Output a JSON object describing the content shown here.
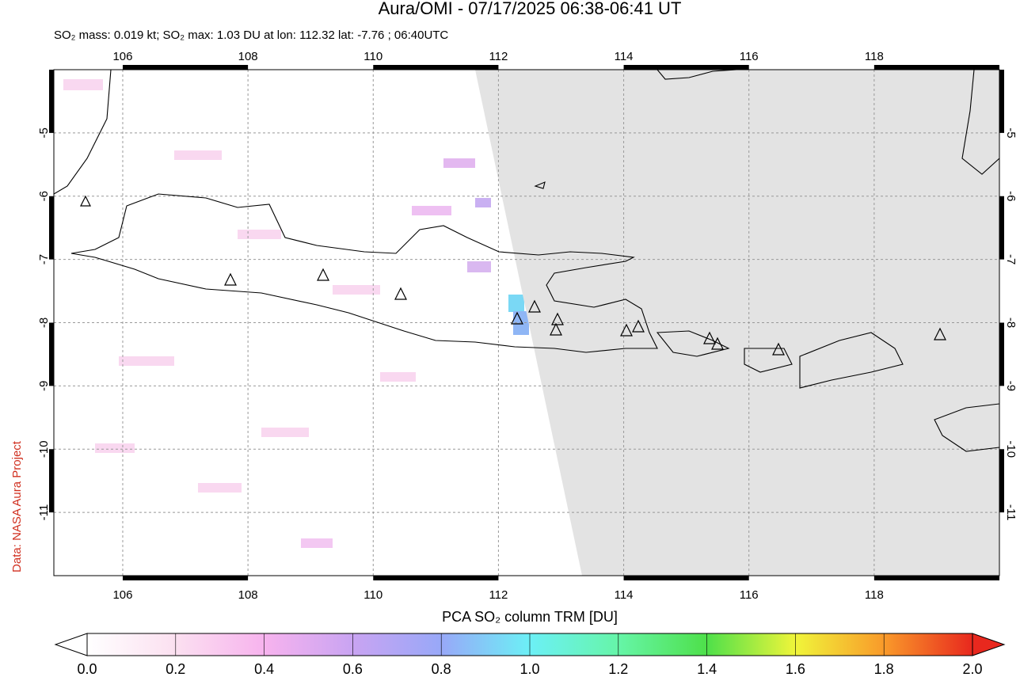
{
  "title": "Aura/OMI - 07/17/2025 06:38-06:41 UT",
  "subtitle": "SO₂ mass: 0.019 kt; SO₂ max: 1.03 DU at lon: 112.32 lat: -7.76 ; 06:40UTC",
  "credit": "Data: NASA Aura Project",
  "map": {
    "lonlim": [
      104.9,
      120
    ],
    "latlim": [
      -12,
      -4
    ],
    "lon_ticks": [
      106,
      108,
      110,
      112,
      114,
      116,
      118
    ],
    "lat_ticks": [
      -5,
      -6,
      -7,
      -8,
      -9,
      -10,
      -11
    ]
  },
  "colorbar": {
    "label": "PCA SO₂ column TRM [DU]",
    "lim": [
      0,
      2
    ],
    "ticks": [
      {
        "value": 0,
        "label": "0.0"
      },
      {
        "value": 0.2,
        "label": "0.2"
      },
      {
        "value": 0.4,
        "label": "0.4"
      },
      {
        "value": 0.6,
        "label": "0.6"
      },
      {
        "value": 0.8,
        "label": "0.8"
      },
      {
        "value": 1,
        "label": "1.0"
      },
      {
        "value": 1.2,
        "label": "1.2"
      },
      {
        "value": 1.4,
        "label": "1.4"
      },
      {
        "value": 1.6,
        "label": "1.6"
      },
      {
        "value": 1.8,
        "label": "1.8"
      },
      {
        "value": 2,
        "label": "2.0"
      }
    ]
  }
}
